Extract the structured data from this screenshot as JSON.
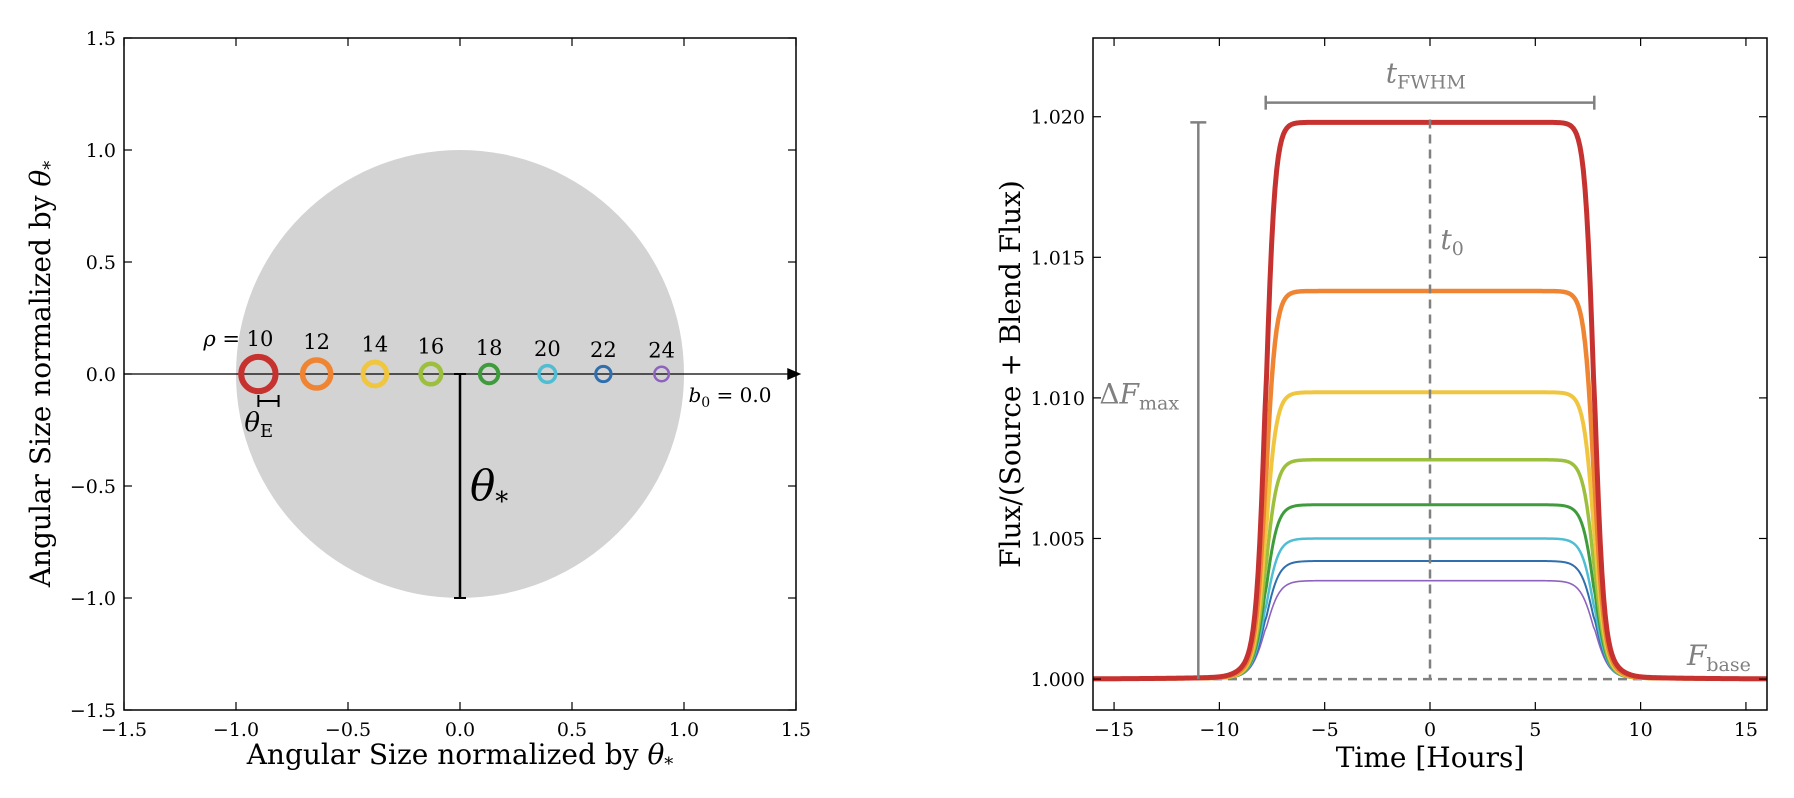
{
  "chart_data": [
    {
      "type": "scatter",
      "xlabel": "Angular Size normalized by θ*",
      "ylabel": "Angular Size normalized by θ*",
      "xlim": [
        -1.5,
        1.5
      ],
      "ylim": [
        -1.5,
        1.5
      ],
      "xticks": [
        "−1.5",
        "−1.0",
        "−0.5",
        "0.0",
        "0.5",
        "1.0",
        "1.5"
      ],
      "yticks": [
        "−1.5",
        "−1.0",
        "−0.5",
        "0.0",
        "0.5",
        "1.0",
        "1.5"
      ],
      "source_disk": {
        "x": 0.0,
        "y": 0.0,
        "radius": 1.0,
        "color": "#d3d3d3"
      },
      "lenses": [
        {
          "rho": "10",
          "x": -0.9,
          "radius": 0.09,
          "color": "#c6322f"
        },
        {
          "rho": "12",
          "x": -0.64,
          "radius": 0.075,
          "color": "#ef8533"
        },
        {
          "rho": "14",
          "x": -0.38,
          "radius": 0.064,
          "color": "#f0c640"
        },
        {
          "rho": "16",
          "x": -0.13,
          "radius": 0.056,
          "color": "#9dbf3e"
        },
        {
          "rho": "18",
          "x": 0.13,
          "radius": 0.05,
          "color": "#3f9c3c"
        },
        {
          "rho": "20",
          "x": 0.39,
          "radius": 0.045,
          "color": "#4fbed3"
        },
        {
          "rho": "22",
          "x": 0.64,
          "radius": 0.041,
          "color": "#2f6fad"
        },
        {
          "rho": "24",
          "x": 0.9,
          "radius": 0.038,
          "color": "#8e62bf"
        }
      ],
      "annotations": {
        "rho_prefix": "ρ = ",
        "theta_e": "θE",
        "theta_star": "θ*",
        "impact": "b0 = 0.0"
      }
    },
    {
      "type": "line",
      "xlabel": "Time [Hours]",
      "ylabel": "Flux/(Source + Blend Flux)",
      "xlim": [
        -16,
        16
      ],
      "ylim": [
        0.9989,
        1.0228
      ],
      "xticks": [
        "−15",
        "−10",
        "−5",
        "0",
        "5",
        "10",
        "15"
      ],
      "xtick_values": [
        -15,
        -10,
        -5,
        0,
        5,
        10,
        15
      ],
      "yticks": [
        "1.000",
        "1.005",
        "1.010",
        "1.015",
        "1.020"
      ],
      "ytick_values": [
        1.0,
        1.005,
        1.01,
        1.015,
        1.02
      ],
      "series": [
        {
          "rho": 10,
          "peak": 1.0198,
          "color": "#c6322f"
        },
        {
          "rho": 12,
          "peak": 1.0138,
          "color": "#ef8533"
        },
        {
          "rho": 14,
          "peak": 1.0102,
          "color": "#f0c640"
        },
        {
          "rho": 16,
          "peak": 1.0078,
          "color": "#9dbf3e"
        },
        {
          "rho": 18,
          "peak": 1.0062,
          "color": "#3f9c3c"
        },
        {
          "rho": 20,
          "peak": 1.005,
          "color": "#4fbed3"
        },
        {
          "rho": 22,
          "peak": 1.0042,
          "color": "#2f6fad"
        },
        {
          "rho": 24,
          "peak": 1.0035,
          "color": "#8e62bf"
        }
      ],
      "half_duration_hours": 7.8,
      "annotations": {
        "t_fwhm": "tFWHM",
        "t0": "t0",
        "delta_f_max": "ΔFmax",
        "f_base": "Fbase"
      },
      "annotation_color": "#808080"
    }
  ]
}
